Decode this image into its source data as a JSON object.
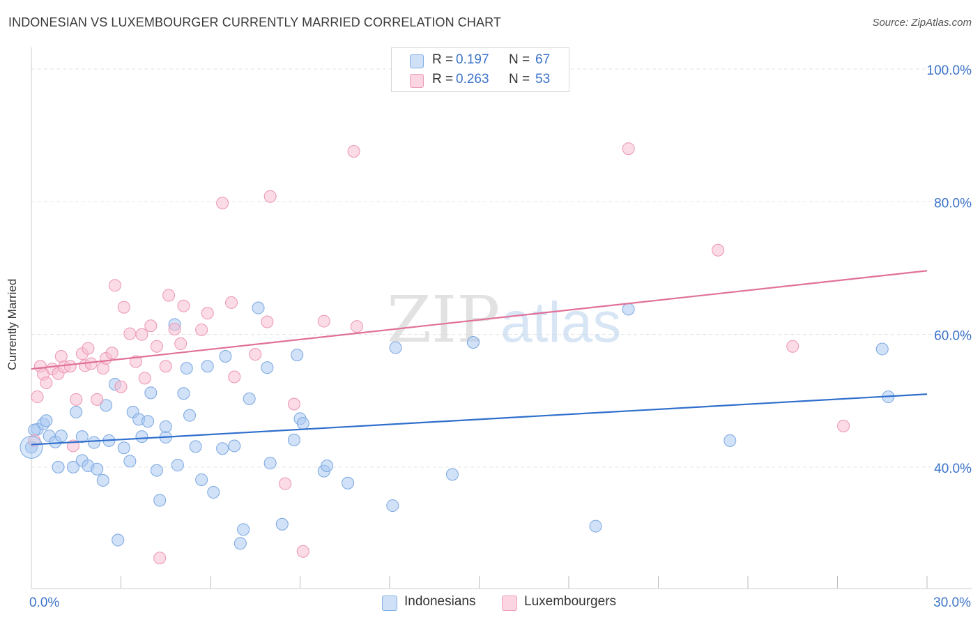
{
  "title": "INDONESIAN VS LUXEMBOURGER CURRENTLY MARRIED CORRELATION CHART",
  "source": "Source: ZipAtlas.com",
  "watermark": {
    "part1": "ZIP",
    "part2": "atlas"
  },
  "legend": {
    "rows": [
      {
        "label": "R =",
        "r": "0.197",
        "n_label": "N =",
        "n": "67",
        "color": "#a9c9f2"
      },
      {
        "label": "R =",
        "r": "0.263",
        "n_label": "N =",
        "n": "53",
        "color": "#f7bdd0"
      }
    ]
  },
  "bottom_legend": [
    {
      "name": "Indonesians",
      "color": "#a9c9f2"
    },
    {
      "name": "Luxembourgers",
      "color": "#f7bdd0"
    }
  ],
  "chart_data": {
    "type": "scatter",
    "title": "INDONESIAN VS LUXEMBOURGER CURRENTLY MARRIED CORRELATION CHART",
    "xlabel": "",
    "ylabel": "Currently Married",
    "xlim": [
      0,
      30
    ],
    "ylim": [
      21.7,
      102
    ],
    "x_tick_labels": [
      {
        "value": 0,
        "label": "0.0%"
      },
      {
        "value": 30,
        "label": "30.0%"
      }
    ],
    "y_ticks": [
      {
        "value": 40,
        "label": "40.0%"
      },
      {
        "value": 60,
        "label": "60.0%"
      },
      {
        "value": 80,
        "label": "80.0%"
      },
      {
        "value": 100,
        "label": "100.0%"
      }
    ],
    "series": [
      {
        "name": "Indonesians",
        "color": "#a9c9f2",
        "stroke": "#7aa7e0",
        "trend": {
          "x": [
            0,
            30
          ],
          "y": [
            43.4,
            51.0
          ],
          "color": "#2f6fcc"
        },
        "points": [
          [
            0.0,
            43.0
          ],
          [
            0.2,
            45.7
          ],
          [
            0.4,
            46.5
          ],
          [
            0.5,
            47.0
          ],
          [
            0.6,
            44.7
          ],
          [
            0.8,
            43.8
          ],
          [
            0.9,
            40.0
          ],
          [
            1.0,
            44.7
          ],
          [
            1.4,
            40.0
          ],
          [
            1.5,
            48.3
          ],
          [
            1.7,
            44.6
          ],
          [
            1.7,
            41.0
          ],
          [
            1.9,
            40.2
          ],
          [
            2.1,
            43.7
          ],
          [
            2.2,
            39.7
          ],
          [
            2.4,
            38.0
          ],
          [
            2.5,
            49.3
          ],
          [
            2.6,
            44.0
          ],
          [
            2.8,
            52.5
          ],
          [
            2.9,
            29.0
          ],
          [
            3.1,
            42.9
          ],
          [
            3.3,
            40.9
          ],
          [
            3.4,
            48.3
          ],
          [
            3.6,
            47.2
          ],
          [
            3.7,
            44.6
          ],
          [
            3.9,
            46.9
          ],
          [
            4.0,
            51.2
          ],
          [
            4.2,
            39.5
          ],
          [
            4.3,
            35.0
          ],
          [
            4.5,
            44.5
          ],
          [
            4.5,
            46.1
          ],
          [
            4.8,
            61.5
          ],
          [
            4.9,
            40.3
          ],
          [
            5.1,
            51.1
          ],
          [
            5.2,
            54.9
          ],
          [
            5.3,
            47.8
          ],
          [
            5.5,
            43.1
          ],
          [
            5.7,
            38.1
          ],
          [
            5.9,
            55.2
          ],
          [
            6.1,
            36.2
          ],
          [
            6.4,
            42.8
          ],
          [
            6.5,
            56.7
          ],
          [
            6.8,
            43.2
          ],
          [
            7.0,
            28.5
          ],
          [
            7.1,
            30.6
          ],
          [
            7.3,
            50.3
          ],
          [
            7.6,
            64.0
          ],
          [
            7.9,
            55.0
          ],
          [
            8.0,
            40.6
          ],
          [
            8.4,
            31.4
          ],
          [
            8.8,
            44.1
          ],
          [
            8.9,
            56.9
          ],
          [
            9.0,
            47.3
          ],
          [
            9.1,
            46.6
          ],
          [
            9.8,
            39.4
          ],
          [
            9.9,
            40.2
          ],
          [
            10.6,
            37.6
          ],
          [
            12.1,
            34.2
          ],
          [
            12.2,
            58.0
          ],
          [
            14.1,
            38.9
          ],
          [
            14.8,
            58.8
          ],
          [
            18.9,
            31.1
          ],
          [
            20.0,
            63.8
          ],
          [
            23.4,
            44.0
          ],
          [
            28.5,
            57.8
          ],
          [
            28.7,
            50.6
          ],
          [
            0.1,
            45.6
          ]
        ]
      },
      {
        "name": "Luxembourgers",
        "color": "#f7bdd0",
        "stroke": "#ec95b2",
        "trend": {
          "x": [
            0,
            30
          ],
          "y": [
            54.8,
            69.6
          ],
          "color": "#e0709a"
        },
        "points": [
          [
            0.1,
            44.0
          ],
          [
            0.2,
            50.6
          ],
          [
            0.3,
            55.2
          ],
          [
            0.4,
            54.0
          ],
          [
            0.5,
            52.7
          ],
          [
            0.7,
            54.8
          ],
          [
            0.9,
            54.1
          ],
          [
            1.0,
            56.7
          ],
          [
            1.1,
            55.1
          ],
          [
            1.3,
            55.2
          ],
          [
            1.4,
            43.2
          ],
          [
            1.5,
            50.2
          ],
          [
            1.7,
            57.1
          ],
          [
            1.8,
            55.3
          ],
          [
            1.9,
            57.9
          ],
          [
            2.0,
            55.6
          ],
          [
            2.2,
            50.2
          ],
          [
            2.4,
            54.9
          ],
          [
            2.5,
            56.4
          ],
          [
            2.7,
            57.2
          ],
          [
            2.8,
            67.4
          ],
          [
            3.0,
            52.1
          ],
          [
            3.1,
            64.1
          ],
          [
            3.3,
            60.1
          ],
          [
            3.5,
            55.9
          ],
          [
            3.7,
            60.0
          ],
          [
            3.8,
            53.4
          ],
          [
            4.0,
            61.3
          ],
          [
            4.2,
            58.2
          ],
          [
            4.3,
            26.3
          ],
          [
            4.5,
            55.2
          ],
          [
            4.6,
            65.9
          ],
          [
            4.8,
            60.8
          ],
          [
            5.0,
            58.6
          ],
          [
            5.1,
            64.3
          ],
          [
            5.7,
            60.7
          ],
          [
            5.9,
            63.2
          ],
          [
            6.4,
            79.8
          ],
          [
            6.7,
            64.8
          ],
          [
            6.8,
            53.6
          ],
          [
            7.5,
            57.0
          ],
          [
            7.9,
            61.9
          ],
          [
            8.0,
            80.8
          ],
          [
            8.5,
            37.5
          ],
          [
            8.8,
            49.5
          ],
          [
            9.1,
            27.3
          ],
          [
            9.8,
            62.0
          ],
          [
            10.8,
            87.6
          ],
          [
            10.9,
            61.2
          ],
          [
            20.0,
            88.0
          ],
          [
            23.0,
            72.7
          ],
          [
            25.5,
            58.2
          ],
          [
            27.2,
            46.2
          ]
        ]
      }
    ]
  }
}
